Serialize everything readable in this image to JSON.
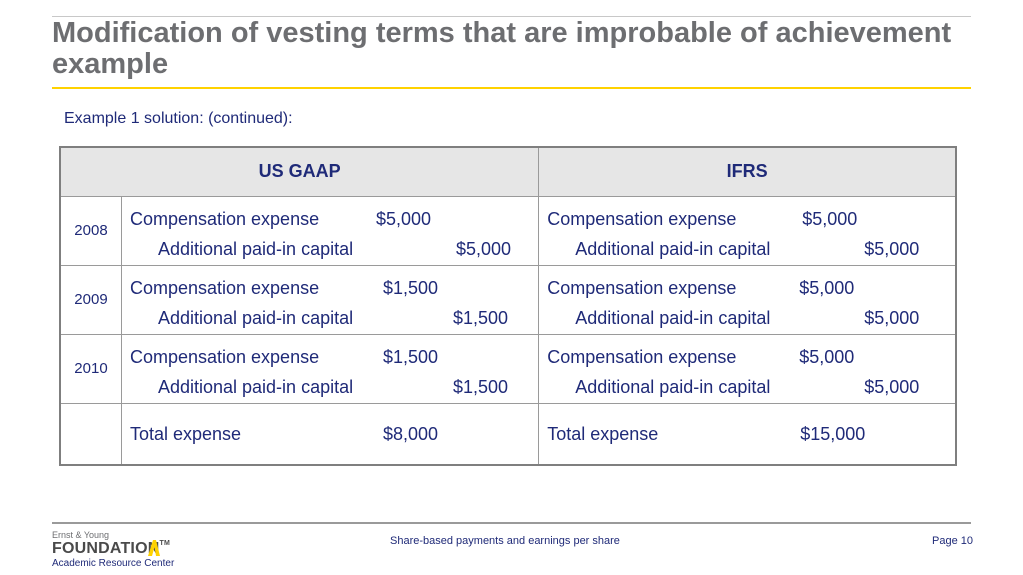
{
  "slide": {
    "title": "Modification of vesting terms that are improbable of achievement example",
    "subtitle": "Example 1 solution: (continued):"
  },
  "table": {
    "headers": [
      "US GAAP",
      "IFRS"
    ],
    "rows": [
      {
        "year": "2008",
        "gaap": {
          "line1_label": "Compensation expense",
          "line1_amount": "$5,000",
          "line2_label": "Additional paid-in capital",
          "line2_amount": "$5,000"
        },
        "ifrs": {
          "line1_label": "Compensation expense",
          "line1_amount": "$5,000",
          "line2_label": "Additional paid-in capital",
          "line2_amount": "$5,000"
        }
      },
      {
        "year": "2009",
        "gaap": {
          "line1_label": "Compensation expense",
          "line1_amount": "$1,500",
          "line2_label": "Additional paid-in capital",
          "line2_amount": "$1,500"
        },
        "ifrs": {
          "line1_label": "Compensation expense",
          "line1_amount": "$5,000",
          "line2_label": "Additional paid-in capital",
          "line2_amount": "$5,000"
        }
      },
      {
        "year": "2010",
        "gaap": {
          "line1_label": "Compensation expense",
          "line1_amount": "$1,500",
          "line2_label": "Additional paid-in capital",
          "line2_amount": "$1,500"
        },
        "ifrs": {
          "line1_label": "Compensation expense",
          "line1_amount": "$5,000",
          "line2_label": "Additional paid-in capital",
          "line2_amount": "$5,000"
        }
      }
    ],
    "total": {
      "gaap": {
        "label": "Total expense",
        "amount": "$8,000"
      },
      "ifrs": {
        "label": "Total expense",
        "amount": "$15,000"
      }
    }
  },
  "footer": {
    "center_text": "Share-based payments and earnings per share",
    "page_label": "Page 10",
    "logo": {
      "top_text": "Ernst & Young",
      "main_text": "FOUNDATION",
      "trademark": "TM",
      "bottom_text": "Academic Resource Center",
      "mark_color": "#ffd200"
    }
  },
  "colors": {
    "accent": "#ffd200",
    "text_navy": "#1f2a78",
    "title_gray": "#6d6e71"
  }
}
